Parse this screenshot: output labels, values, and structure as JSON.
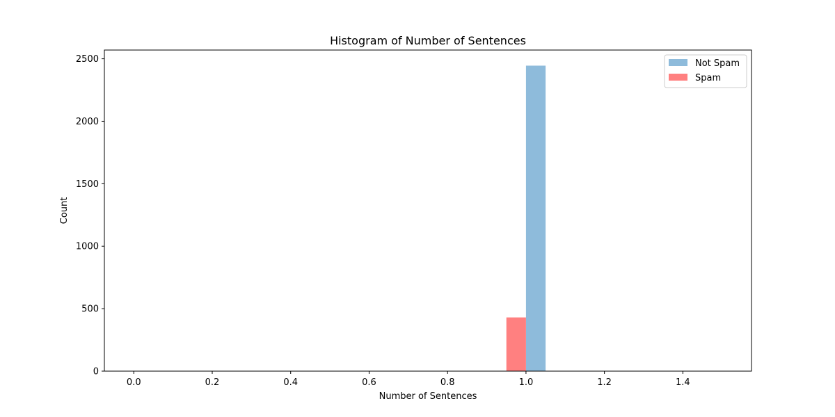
{
  "chart_data": {
    "type": "bar",
    "title": "Histogram of Number of Sentences",
    "xlabel": "Number of Sentences",
    "ylabel": "Count",
    "xlim": [
      -0.075,
      1.575
    ],
    "ylim": [
      0,
      2570
    ],
    "xticks": [
      "0.0",
      "0.2",
      "0.4",
      "0.6",
      "0.8",
      "1.0",
      "1.2",
      "1.4"
    ],
    "xtick_values": [
      0.0,
      0.2,
      0.4,
      0.6,
      0.8,
      1.0,
      1.2,
      1.4
    ],
    "yticks": [
      "0",
      "500",
      "1000",
      "1500",
      "2000",
      "2500"
    ],
    "ytick_values": [
      0,
      500,
      1000,
      1500,
      2000,
      2500
    ],
    "grid": false,
    "legend_position": "top-right",
    "series": [
      {
        "name": "Not Spam",
        "color": "#8ebbdb",
        "bars": [
          {
            "x0": 1.0,
            "x1": 1.05,
            "value": 2445
          }
        ]
      },
      {
        "name": "Spam",
        "color": "#ff8080",
        "bars": [
          {
            "x0": 0.95,
            "x1": 1.0,
            "value": 430
          }
        ]
      }
    ]
  }
}
